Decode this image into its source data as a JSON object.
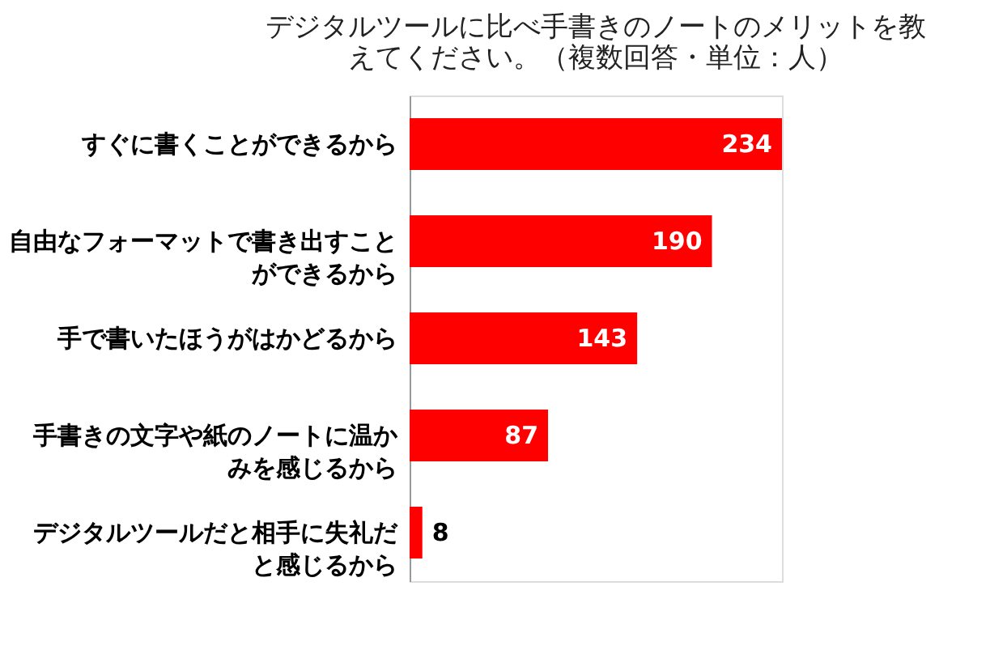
{
  "chart_data": {
    "type": "bar",
    "orientation": "horizontal",
    "title": "デジタルツールに比べ手書きのノートのメリットを教えてください。（複数回答・単位：人）",
    "categories": [
      "すぐに書くことができるから",
      "自由なフォーマットで書き出すことができるから",
      "手で書いたほうがはかどるから",
      "手書きの文字や紙のノートに温かみを感じるから",
      "デジタルツールだと相手に失礼だと感じるから"
    ],
    "values": [
      234,
      190,
      143,
      87,
      8
    ],
    "color": "#ff0000",
    "data_labels": true
  }
}
